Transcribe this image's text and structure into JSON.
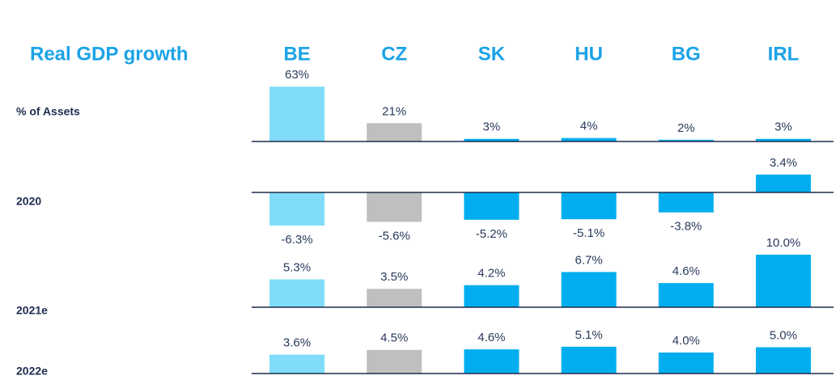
{
  "chart_data": {
    "type": "bar",
    "title": "Real GDP growth",
    "categories": [
      "BE",
      "CZ",
      "SK",
      "HU",
      "BG",
      "IRL"
    ],
    "colors": [
      "#80dcf8",
      "#bfbfbf",
      "#00aeef",
      "#00aeef",
      "#00aeef",
      "#00aeef"
    ],
    "series": [
      {
        "name": "% of Assets",
        "values": [
          63,
          21,
          3,
          4,
          2,
          3
        ],
        "value_labels": [
          "63%",
          "21%",
          "3%",
          "4%",
          "2%",
          "3%"
        ],
        "ylim": [
          0,
          65
        ]
      },
      {
        "name": "2020",
        "values": [
          -6.3,
          -5.6,
          -5.2,
          -5.1,
          -3.8,
          3.4
        ],
        "value_labels": [
          "-6.3%",
          "-5.6%",
          "-5.2%",
          "-5.1%",
          "-3.8%",
          "3.4%"
        ],
        "ylim": [
          -10,
          10
        ]
      },
      {
        "name": "2021e",
        "values": [
          5.3,
          3.5,
          4.2,
          6.7,
          4.6,
          10.0
        ],
        "value_labels": [
          "5.3%",
          "3.5%",
          "4.2%",
          "6.7%",
          "4.6%",
          "10.0%"
        ],
        "ylim": [
          -10,
          10
        ]
      },
      {
        "name": "2022e",
        "values": [
          3.6,
          4.5,
          4.6,
          5.1,
          4.0,
          5.0
        ],
        "value_labels": [
          "3.6%",
          "4.5%",
          "4.6%",
          "5.1%",
          "4.0%",
          "5.0%"
        ],
        "ylim": [
          -10,
          10
        ]
      }
    ]
  }
}
